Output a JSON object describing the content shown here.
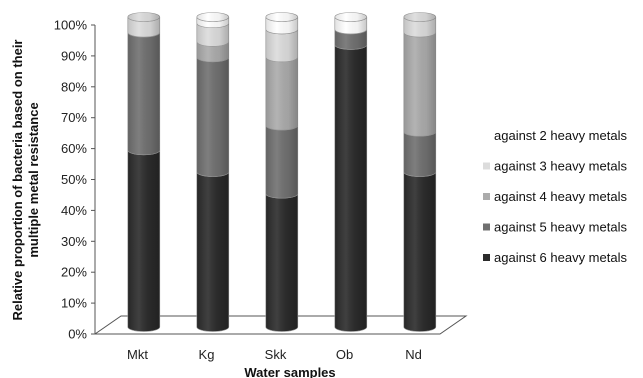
{
  "chart_data": {
    "type": "bar",
    "stacked": true,
    "categories": [
      "Mkt",
      "Kg",
      "Skk",
      "Ob",
      "Nd"
    ],
    "series": [
      {
        "name": "against 6 heavy metals",
        "color": "#2b2b2b",
        "values": [
          57,
          50,
          43,
          91,
          50
        ]
      },
      {
        "name": "against 5 heavy metals",
        "color": "#707070",
        "values": [
          38,
          37,
          22,
          5,
          13
        ]
      },
      {
        "name": "against 4 heavy metals",
        "color": "#ababab",
        "values": [
          0,
          5,
          22,
          0,
          32
        ]
      },
      {
        "name": "against 3 heavy metals",
        "color": "#dcdcdc",
        "values": [
          5,
          6,
          9,
          0,
          5
        ]
      },
      {
        "name": "against 2 heavy metals",
        "color": "#ffffff",
        "values": [
          0,
          2,
          4,
          4,
          0
        ]
      }
    ],
    "ylabel": "Relative proportion of bacteria based on their multiple metal resistance",
    "ylabel_lines": [
      "Relative proportion of bacteria based on their",
      "multiple metal resistance"
    ],
    "xlabel": "Water samples",
    "ylim": [
      0,
      100
    ],
    "yticks": [
      "0%",
      "10%",
      "20%",
      "30%",
      "40%",
      "50%",
      "60%",
      "70%",
      "80%",
      "90%",
      "100%"
    ],
    "legend_position": "right",
    "grid": false
  }
}
